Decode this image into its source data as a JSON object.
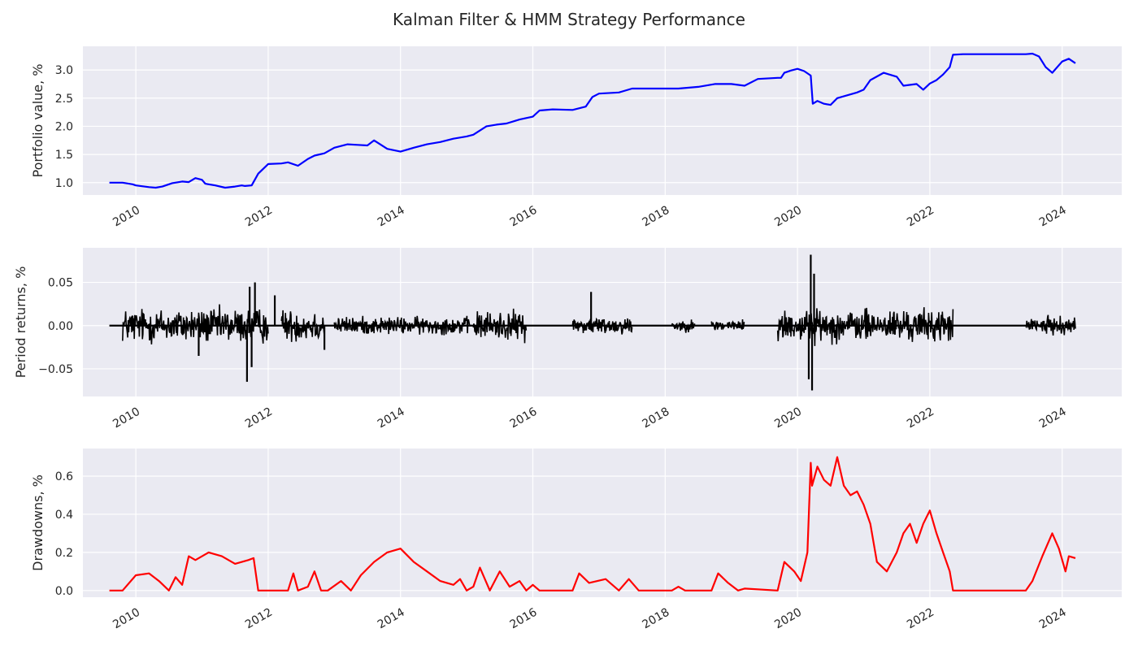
{
  "figure": {
    "title": "Kalman Filter & HMM Strategy Performance"
  },
  "chart_data": [
    {
      "type": "line",
      "name": "portfolio-value",
      "title": "",
      "xlabel": "",
      "ylabel": "Portfolio value, %",
      "color": "#0000ff",
      "xlim": [
        2009.2,
        2024.9
      ],
      "ylim": [
        0.78,
        3.42
      ],
      "xticks": [
        2010,
        2012,
        2014,
        2016,
        2018,
        2020,
        2022,
        2024
      ],
      "xtick_labels": [
        "2010",
        "2012",
        "2014",
        "2016",
        "2018",
        "2020",
        "2022",
        "2024"
      ],
      "yticks": [
        1.0,
        1.5,
        2.0,
        2.5,
        3.0
      ],
      "ytick_labels": [
        "1.0",
        "1.5",
        "2.0",
        "2.5",
        "3.0"
      ],
      "grid": true,
      "series": [
        {
          "x": [
            2009.6,
            2009.8,
            2009.95,
            2010.0,
            2010.2,
            2010.3,
            2010.4,
            2010.55,
            2010.7,
            2010.8,
            2010.9,
            2011.0,
            2011.05,
            2011.2,
            2011.35,
            2011.5,
            2011.6,
            2011.65,
            2011.75,
            2011.85,
            2012.0,
            2012.2,
            2012.3,
            2012.45,
            2012.6,
            2012.7,
            2012.85,
            2013.0,
            2013.2,
            2013.35,
            2013.5,
            2013.6,
            2013.8,
            2014.0,
            2014.2,
            2014.4,
            2014.6,
            2014.8,
            2015.0,
            2015.1,
            2015.3,
            2015.45,
            2015.6,
            2015.8,
            2016.0,
            2016.1,
            2016.3,
            2016.6,
            2016.8,
            2016.9,
            2017.0,
            2017.3,
            2017.5,
            2018.0,
            2018.2,
            2018.5,
            2018.75,
            2019.0,
            2019.2,
            2019.4,
            2019.7,
            2019.75,
            2019.8,
            2019.9,
            2020.0,
            2020.1,
            2020.2,
            2020.23,
            2020.3,
            2020.4,
            2020.5,
            2020.6,
            2020.75,
            2020.9,
            2021.0,
            2021.1,
            2021.3,
            2021.5,
            2021.6,
            2021.8,
            2021.9,
            2022.0,
            2022.1,
            2022.2,
            2022.3,
            2022.35,
            2022.5,
            2023.0,
            2023.45,
            2023.55,
            2023.65,
            2023.75,
            2023.85,
            2024.0,
            2024.1,
            2024.2
          ],
          "y": [
            1.0,
            1.0,
            0.97,
            0.95,
            0.92,
            0.91,
            0.93,
            0.99,
            1.02,
            1.01,
            1.08,
            1.05,
            0.98,
            0.95,
            0.91,
            0.93,
            0.95,
            0.94,
            0.95,
            1.16,
            1.33,
            1.34,
            1.36,
            1.3,
            1.42,
            1.48,
            1.52,
            1.62,
            1.68,
            1.67,
            1.66,
            1.75,
            1.6,
            1.55,
            1.62,
            1.68,
            1.72,
            1.78,
            1.82,
            1.85,
            2.0,
            2.03,
            2.05,
            2.12,
            2.17,
            2.28,
            2.3,
            2.29,
            2.35,
            2.52,
            2.58,
            2.6,
            2.67,
            2.67,
            2.67,
            2.7,
            2.75,
            2.75,
            2.72,
            2.84,
            2.86,
            2.86,
            2.95,
            2.99,
            3.02,
            2.98,
            2.9,
            2.4,
            2.45,
            2.4,
            2.38,
            2.5,
            2.55,
            2.6,
            2.65,
            2.82,
            2.95,
            2.88,
            2.72,
            2.75,
            2.65,
            2.76,
            2.82,
            2.92,
            3.05,
            3.27,
            3.28,
            3.28,
            3.28,
            3.29,
            3.24,
            3.05,
            2.95,
            3.15,
            3.2,
            3.12
          ]
        }
      ]
    },
    {
      "type": "line",
      "name": "period-returns",
      "title": "",
      "xlabel": "",
      "ylabel": "Period returns, %",
      "color": "#000000",
      "xlim": [
        2009.2,
        2024.9
      ],
      "ylim": [
        -0.082,
        0.09
      ],
      "xticks": [
        2010,
        2012,
        2014,
        2016,
        2018,
        2020,
        2022,
        2024
      ],
      "xtick_labels": [
        "2010",
        "2012",
        "2014",
        "2016",
        "2018",
        "2020",
        "2022",
        "2024"
      ],
      "yticks": [
        -0.05,
        0.0,
        0.05
      ],
      "ytick_labels": [
        "−0.05",
        "0.00",
        "0.05"
      ],
      "grid": true,
      "active_segments": [
        {
          "start": 2009.8,
          "end": 2012.0,
          "amp": 0.012
        },
        {
          "start": 2012.2,
          "end": 2012.85,
          "amp": 0.011
        },
        {
          "start": 2013.0,
          "end": 2015.05,
          "amp": 0.006
        },
        {
          "start": 2015.1,
          "end": 2015.9,
          "amp": 0.01
        },
        {
          "start": 2016.6,
          "end": 2017.5,
          "amp": 0.006
        },
        {
          "start": 2018.1,
          "end": 2018.45,
          "amp": 0.004
        },
        {
          "start": 2018.7,
          "end": 2019.2,
          "amp": 0.004
        },
        {
          "start": 2019.7,
          "end": 2022.35,
          "amp": 0.011
        },
        {
          "start": 2023.45,
          "end": 2024.2,
          "amp": 0.006
        }
      ],
      "spikes": [
        {
          "x": 2011.72,
          "y": 0.045
        },
        {
          "x": 2011.8,
          "y": 0.05
        },
        {
          "x": 2011.68,
          "y": -0.065
        },
        {
          "x": 2011.75,
          "y": -0.048
        },
        {
          "x": 2012.1,
          "y": 0.035
        },
        {
          "x": 2016.88,
          "y": 0.039
        },
        {
          "x": 2020.2,
          "y": 0.082
        },
        {
          "x": 2020.22,
          "y": -0.075
        },
        {
          "x": 2020.17,
          "y": -0.062
        },
        {
          "x": 2020.25,
          "y": 0.06
        },
        {
          "x": 2010.95,
          "y": -0.035
        },
        {
          "x": 2012.85,
          "y": -0.028
        }
      ]
    },
    {
      "type": "line",
      "name": "drawdowns",
      "title": "",
      "xlabel": "",
      "ylabel": "Drawdowns, %",
      "color": "#ff0000",
      "xlim": [
        2009.2,
        2024.9
      ],
      "ylim": [
        -0.035,
        0.745
      ],
      "xticks": [
        2010,
        2012,
        2014,
        2016,
        2018,
        2020,
        2022,
        2024
      ],
      "xtick_labels": [
        "2010",
        "2012",
        "2014",
        "2016",
        "2018",
        "2020",
        "2022",
        "2024"
      ],
      "yticks": [
        0.0,
        0.2,
        0.4,
        0.6
      ],
      "ytick_labels": [
        "0.0",
        "0.2",
        "0.4",
        "0.6"
      ],
      "grid": true,
      "series": [
        {
          "x": [
            2009.6,
            2009.8,
            2010.0,
            2010.2,
            2010.35,
            2010.5,
            2010.6,
            2010.7,
            2010.8,
            2010.9,
            2011.1,
            2011.3,
            2011.5,
            2011.7,
            2011.78,
            2011.85,
            2012.0,
            2012.3,
            2012.38,
            2012.45,
            2012.6,
            2012.7,
            2012.8,
            2012.9,
            2013.1,
            2013.25,
            2013.4,
            2013.6,
            2013.8,
            2014.0,
            2014.2,
            2014.4,
            2014.6,
            2014.8,
            2014.9,
            2015.0,
            2015.1,
            2015.2,
            2015.35,
            2015.5,
            2015.65,
            2015.8,
            2015.9,
            2016.0,
            2016.1,
            2016.6,
            2016.7,
            2016.85,
            2017.1,
            2017.3,
            2017.45,
            2017.6,
            2018.1,
            2018.2,
            2018.3,
            2018.7,
            2018.8,
            2018.95,
            2019.1,
            2019.2,
            2019.7,
            2019.8,
            2019.95,
            2020.05,
            2020.15,
            2020.2,
            2020.22,
            2020.3,
            2020.4,
            2020.5,
            2020.6,
            2020.7,
            2020.8,
            2020.9,
            2021.0,
            2021.1,
            2021.2,
            2021.35,
            2021.5,
            2021.6,
            2021.7,
            2021.8,
            2021.9,
            2022.0,
            2022.1,
            2022.2,
            2022.3,
            2022.35,
            2022.5,
            2023.45,
            2023.55,
            2023.7,
            2023.85,
            2023.95,
            2024.05,
            2024.1,
            2024.2
          ],
          "y": [
            0.0,
            0.0,
            0.08,
            0.09,
            0.05,
            0.0,
            0.07,
            0.03,
            0.18,
            0.16,
            0.2,
            0.18,
            0.14,
            0.16,
            0.17,
            0.0,
            0.0,
            0.0,
            0.09,
            0.0,
            0.02,
            0.1,
            0.0,
            0.0,
            0.05,
            0.0,
            0.08,
            0.15,
            0.2,
            0.22,
            0.15,
            0.1,
            0.05,
            0.03,
            0.06,
            0.0,
            0.02,
            0.12,
            0.0,
            0.1,
            0.02,
            0.05,
            0.0,
            0.03,
            0.0,
            0.0,
            0.09,
            0.04,
            0.06,
            0.0,
            0.06,
            0.0,
            0.0,
            0.02,
            0.0,
            0.0,
            0.09,
            0.04,
            0.0,
            0.01,
            0.0,
            0.15,
            0.1,
            0.05,
            0.2,
            0.67,
            0.55,
            0.65,
            0.58,
            0.55,
            0.7,
            0.55,
            0.5,
            0.52,
            0.45,
            0.35,
            0.15,
            0.1,
            0.2,
            0.3,
            0.35,
            0.25,
            0.35,
            0.42,
            0.3,
            0.2,
            0.1,
            0.0,
            0.0,
            0.0,
            0.05,
            0.18,
            0.3,
            0.22,
            0.1,
            0.18,
            0.17
          ]
        }
      ]
    }
  ]
}
